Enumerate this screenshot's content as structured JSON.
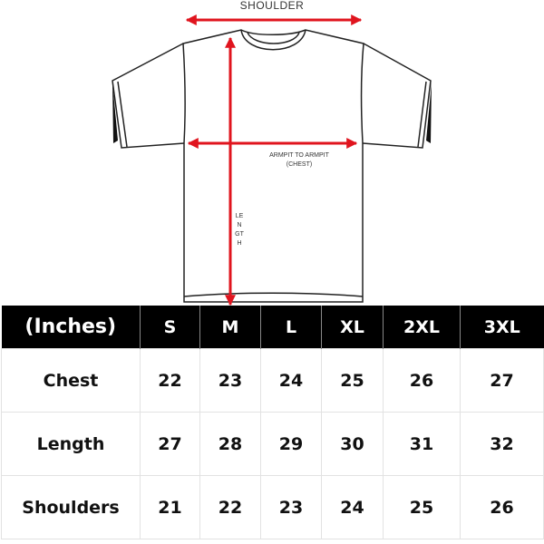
{
  "diagram": {
    "shoulder_label": "SHOULDER",
    "chest_label_line1": "ARMPIT TO ARMPIT",
    "chest_label_line2": "(CHEST)",
    "length_label": "LENGTH",
    "arrow_color": "#e0141e"
  },
  "table": {
    "unit_header": "(Inches)",
    "sizes": [
      "S",
      "M",
      "L",
      "XL",
      "2XL",
      "3XL"
    ],
    "rows": [
      {
        "label": "Chest",
        "values": [
          "22",
          "23",
          "24",
          "25",
          "26",
          "27"
        ]
      },
      {
        "label": "Length",
        "values": [
          "27",
          "28",
          "29",
          "30",
          "31",
          "32"
        ]
      },
      {
        "label": "Shoulders",
        "values": [
          "21",
          "22",
          "23",
          "24",
          "25",
          "26"
        ]
      }
    ]
  }
}
